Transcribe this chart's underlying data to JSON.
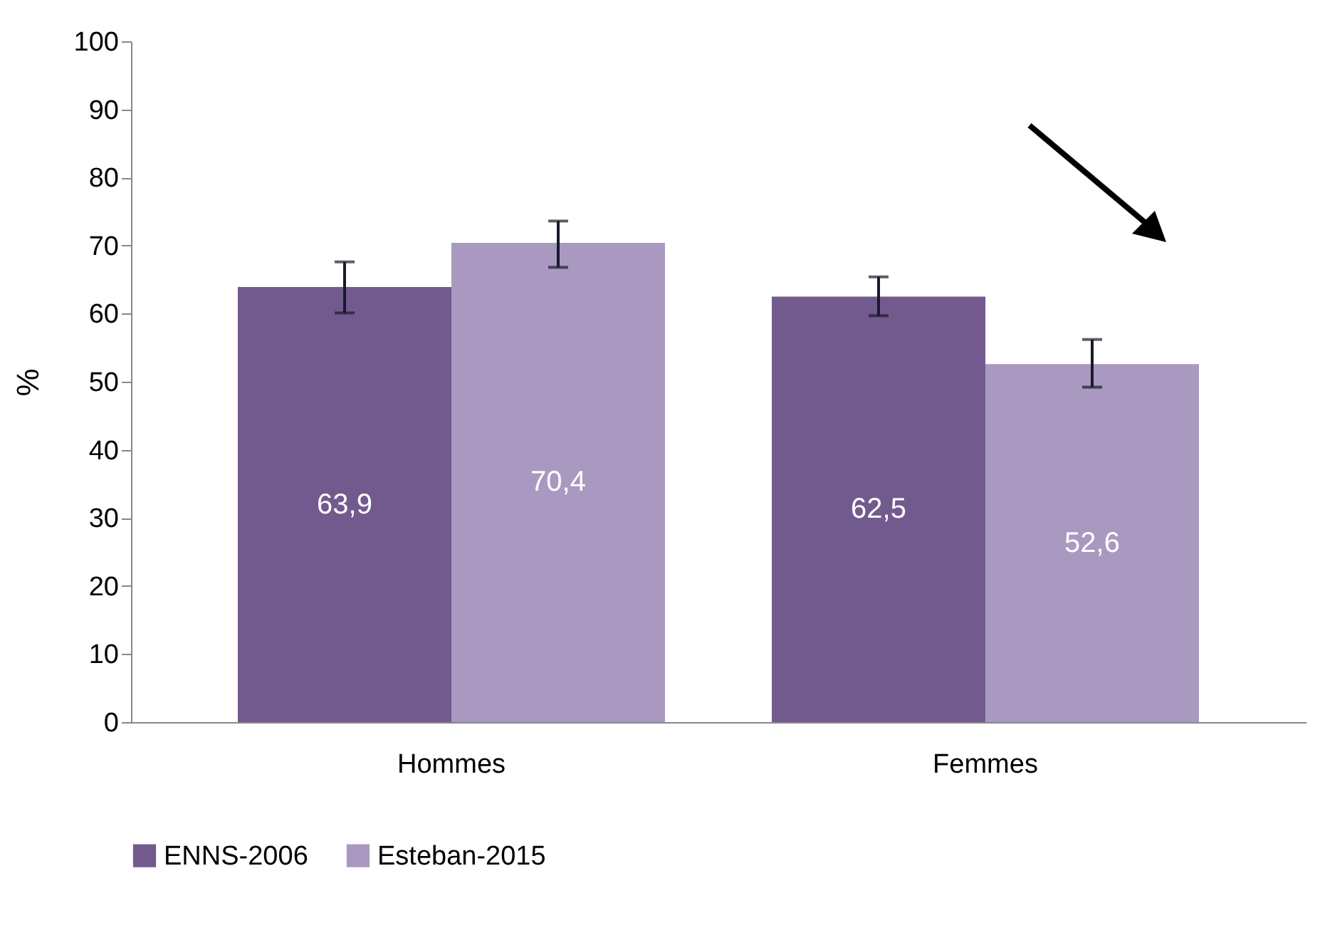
{
  "chart_data": {
    "type": "bar",
    "ylabel": "%",
    "categories": [
      "Hommes",
      "Femmes"
    ],
    "series": [
      {
        "name": "ENNS-2006",
        "color": "#725a8e",
        "values": [
          63.9,
          62.5
        ],
        "errors": [
          [
            60.1,
            67.6
          ],
          [
            59.7,
            65.4
          ]
        ],
        "value_labels": [
          "63,9",
          "62,5"
        ]
      },
      {
        "name": "Esteban-2015",
        "color": "#a999c0",
        "values": [
          70.4,
          52.6
        ],
        "errors": [
          [
            66.8,
            73.6
          ],
          [
            49.2,
            56.2
          ]
        ],
        "value_labels": [
          "70,4",
          "52,6"
        ]
      }
    ],
    "ylim": [
      0,
      100
    ],
    "yticks": [
      0,
      10,
      20,
      30,
      40,
      50,
      60,
      70,
      80,
      90,
      100
    ],
    "grid": false,
    "legend": "bottom"
  }
}
